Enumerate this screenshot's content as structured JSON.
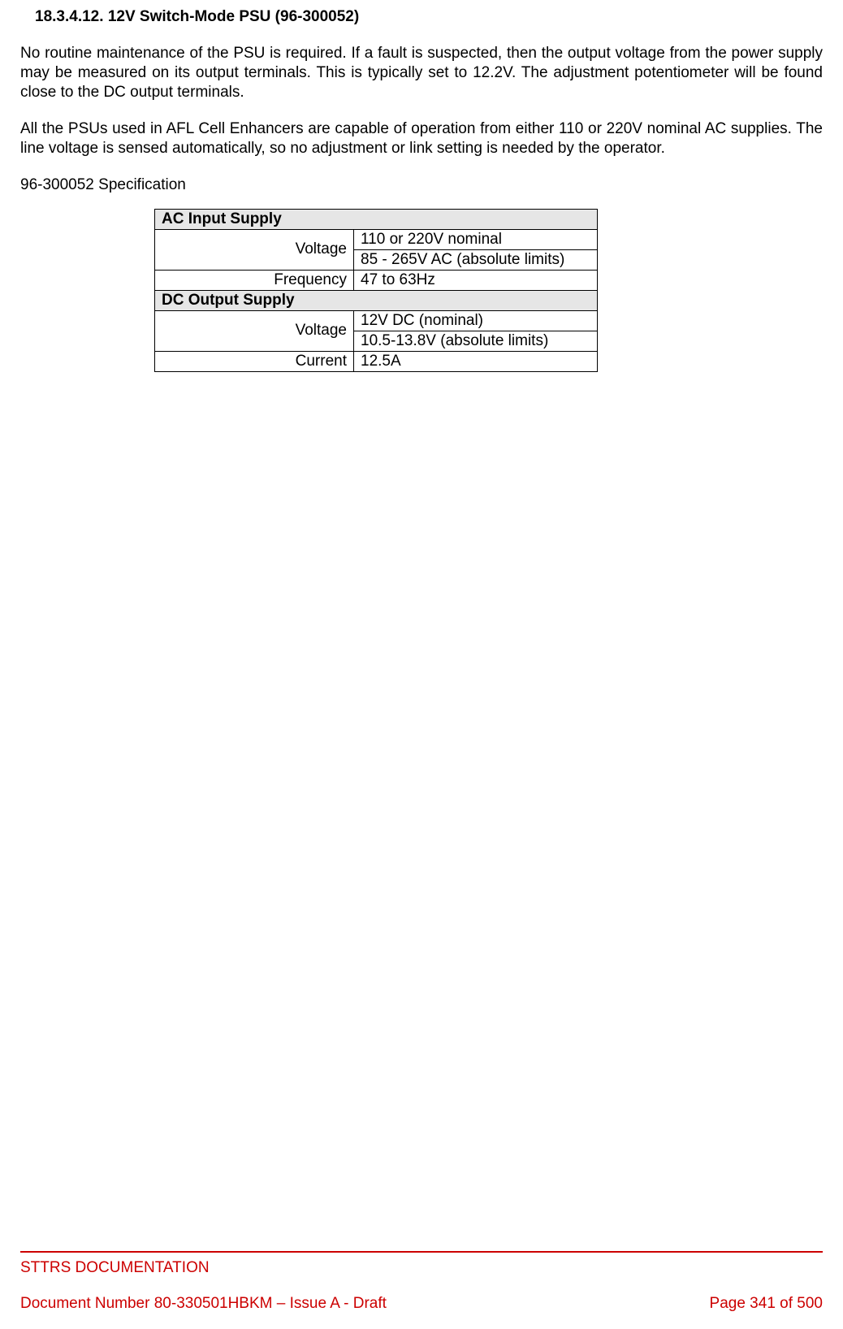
{
  "section": {
    "number": "18.3.4.12.",
    "title": "12V Switch-Mode PSU (96-300052)"
  },
  "paragraphs": {
    "p1": "No routine maintenance of the PSU is required. If a fault is suspected, then the output voltage from the power supply may be measured on its output terminals. This is typically set to 12.2V. The adjustment potentiometer will be found close to the DC output terminals.",
    "p2": "All the PSUs used in AFL Cell Enhancers are capable of operation from either 110 or 220V nominal AC supplies. The line voltage is sensed automatically, so no adjustment or link setting is needed by the operator.",
    "spec_intro": "96-300052 Specification"
  },
  "table": {
    "ac_header": "AC Input Supply",
    "dc_header": "DC Output Supply",
    "voltage_label": "Voltage",
    "frequency_label": "Frequency",
    "current_label": "Current",
    "ac_voltage_nominal": "110 or 220V nominal",
    "ac_voltage_absolute": "85 - 265V AC  (absolute limits)",
    "ac_frequency": "47 to 63Hz",
    "dc_voltage_nominal": "12V DC (nominal)",
    "dc_voltage_absolute": "10.5-13.8V (absolute limits)",
    "dc_current": "12.5A",
    "colors": {
      "header_bg": "#e6e6e6",
      "border": "#000000"
    }
  },
  "footer": {
    "org": "STTRS DOCUMENTATION",
    "doc_number": "Document Number 80-330501HBKM – Issue A - Draft",
    "page": "Page 341 of 500",
    "color": "#cc0000"
  }
}
